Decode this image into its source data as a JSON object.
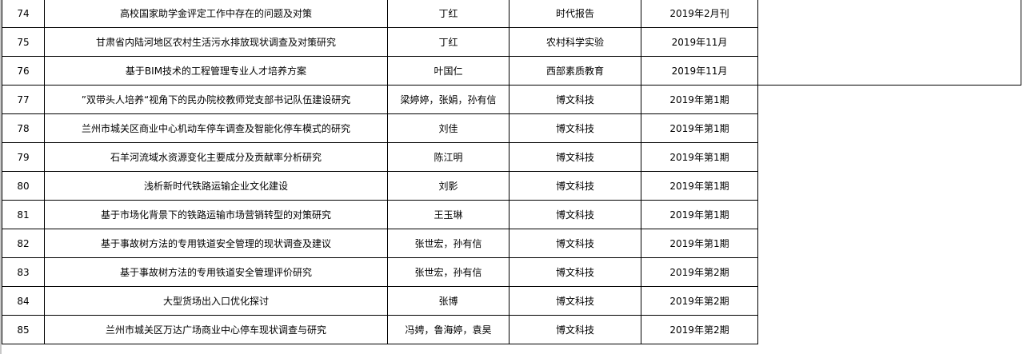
{
  "rows": [
    {
      "no": "74",
      "title": "高校国家助学金评定工作中存在的问题及对策",
      "author": "丁红",
      "journal": "时代报告",
      "date": "2019年2月刊"
    },
    {
      "no": "75",
      "title": "甘肃省内陆河地区农村生活污水排放现状调查及对策研究",
      "author": "丁红",
      "journal": "农村科学实验",
      "date": "2019年11月"
    },
    {
      "no": "76",
      "title": "基于BIM技术的工程管理专业人才培养方案",
      "author": "叶国仁",
      "journal": "西部素质教育",
      "date": "2019年11月"
    },
    {
      "no": "77",
      "title": "”双带头人培养“视角下的民办院校教师党支部书记队伍建设研究",
      "author": "梁婷婷，张娟，孙有信",
      "journal": "博文科技",
      "date": "2019年第1期"
    },
    {
      "no": "78",
      "title": "兰州市城关区商业中心机动车停车调查及智能化停车模式的研究",
      "author": "刘佳",
      "journal": "博文科技",
      "date": "2019年第1期"
    },
    {
      "no": "79",
      "title": "石羊河流域水资源变化主要成分及贡献率分析研究",
      "author": "陈江明",
      "journal": "博文科技",
      "date": "2019年第1期"
    },
    {
      "no": "80",
      "title": "浅析新时代铁路运输企业文化建设",
      "author": "刘影",
      "journal": "博文科技",
      "date": "2019年第1期"
    },
    {
      "no": "81",
      "title": "基于市场化背景下的铁路运输市场营销转型的对策研究",
      "author": "王玉琳",
      "journal": "博文科技",
      "date": "2019年第1期"
    },
    {
      "no": "82",
      "title": "基于事故树方法的专用铁道安全管理的现状调查及建议",
      "author": "张世宏，孙有信",
      "journal": "博文科技",
      "date": "2019年第1期"
    },
    {
      "no": "83",
      "title": "基于事故树方法的专用铁道安全管理评价研究",
      "author": "张世宏，孙有信",
      "journal": "博文科技",
      "date": "2019年第2期"
    },
    {
      "no": "84",
      "title": "大型货场出入口优化探讨",
      "author": "张博",
      "journal": "博文科技",
      "date": "2019年第2期"
    },
    {
      "no": "85",
      "title": "兰州市城关区万达广场商业中心停车现状调查与研究",
      "author": "冯娉，鲁海婷，袁昊",
      "journal": "博文科技",
      "date": "2019年第2期"
    }
  ]
}
